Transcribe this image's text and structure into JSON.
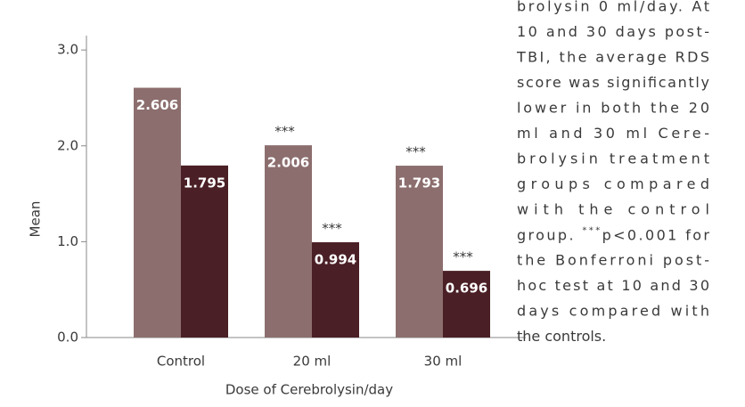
{
  "chart_data": {
    "type": "bar",
    "y_label": "Mean",
    "x_label": "Dose of Cerebrolysin/day",
    "categories": [
      "Control",
      "20 ml",
      "30 ml"
    ],
    "series": [
      {
        "color": "#8c6e6e",
        "values": [
          2.606,
          2.006,
          1.793
        ]
      },
      {
        "color": "#4a1f25",
        "values": [
          1.795,
          0.994,
          0.696
        ]
      }
    ],
    "ylim": [
      0,
      3.15
    ],
    "yticks": [
      {
        "value": 0,
        "label": "0.0"
      },
      {
        "value": 1,
        "label": "1.0"
      },
      {
        "value": 2,
        "label": "2.0"
      },
      {
        "value": 3,
        "label": "3.0"
      }
    ],
    "annotations": [
      "***",
      "***",
      "***",
      "***"
    ]
  },
  "caption": {
    "lines": [
      "brolysin 0 ml/day. At",
      "10 and 30 days post-",
      "TBI, the average RDS",
      "score was significantly",
      "lower in both the 20",
      "ml and 30 ml Cere-",
      "brolysin treatment",
      "groups compared",
      "with the control",
      {
        "pre": "group. ",
        "sup": "***",
        "post": "p<0.001 for"
      },
      "the Bonferroni post-",
      "hoc test at 10 and 30",
      "days compared with",
      "the controls."
    ]
  }
}
